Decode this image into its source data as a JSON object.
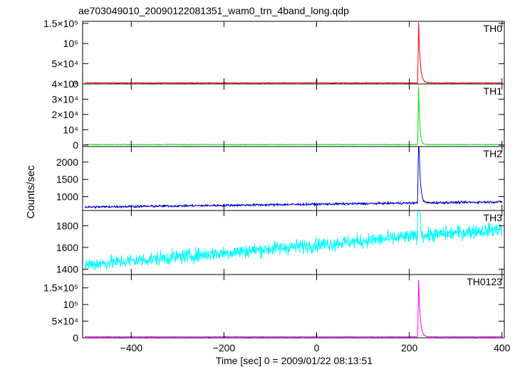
{
  "chart_data": {
    "type": "line",
    "title": "ae703049010_20090122081351_wam0_trn_4band_long.qdp",
    "xlabel": "Time [sec] 0 = 2009/01/22 08:13:51",
    "ylabel": "Counts/sec",
    "xlim": [
      -505,
      405
    ],
    "x_ticks": [
      -400,
      -200,
      0,
      200,
      400
    ],
    "x_tick_labels": [
      "−400",
      "−200",
      "0",
      "200",
      "400"
    ],
    "grid": false,
    "panels": [
      {
        "name": "TH0",
        "color": "#ff0000",
        "ylim": [
          0,
          155000
        ],
        "y_ticks": [
          0,
          50000,
          100000,
          150000
        ],
        "y_tick_labels": [
          "0",
          "5×10⁴",
          "10⁵",
          "1.5×10⁵"
        ],
        "baseline": 2500,
        "noise": 700,
        "trend": 0,
        "peak": {
          "x": 220,
          "value": 150000,
          "decay": 3.5
        },
        "extra_spikes": [
          {
            "x": 0,
            "value": 9000
          }
        ]
      },
      {
        "name": "TH1",
        "color": "#00dd00",
        "ylim": [
          -1000,
          40000
        ],
        "y_ticks": [
          0,
          10000,
          20000,
          30000,
          40000
        ],
        "y_tick_labels": [
          "0",
          "10⁴",
          "2×10⁴",
          "3×10⁴",
          "4×10⁴"
        ],
        "baseline": 300,
        "noise": 150,
        "trend": 0,
        "peak": {
          "x": 220,
          "value": 38000,
          "decay": 2.5
        },
        "extra_spikes": []
      },
      {
        "name": "TH2",
        "color": "#0000cc",
        "ylim": [
          600,
          2450
        ],
        "y_ticks": [
          1000,
          1500,
          2000
        ],
        "y_tick_labels": [
          "1000",
          "1500",
          "2000"
        ],
        "baseline": 700,
        "noise": 25,
        "trend": 150,
        "peak": {
          "x": 220,
          "value": 2350,
          "decay": 3.0
        },
        "extra_spikes": []
      },
      {
        "name": "TH3",
        "color": "#00ffff",
        "ylim": [
          1350,
          1940
        ],
        "y_ticks": [
          1400,
          1600,
          1800
        ],
        "y_tick_labels": [
          "1400",
          "1600",
          "1800"
        ],
        "baseline": 1440,
        "noise": 45,
        "trend": 330,
        "peak": {
          "x": 220,
          "value": 1930,
          "decay": 1.5
        },
        "extra_spikes": []
      },
      {
        "name": "TH0123",
        "color": "#ff00ff",
        "ylim": [
          0,
          190000
        ],
        "y_ticks": [
          0,
          50000,
          100000,
          150000
        ],
        "y_tick_labels": [
          "0",
          "5×10⁴",
          "10⁵",
          "1.5×10⁵"
        ],
        "baseline": 3000,
        "noise": 900,
        "trend": 0,
        "peak": {
          "x": 220,
          "value": 170000,
          "decay": 3.5
        },
        "extra_spikes": [
          {
            "x": 0,
            "value": 8000
          }
        ]
      }
    ]
  }
}
